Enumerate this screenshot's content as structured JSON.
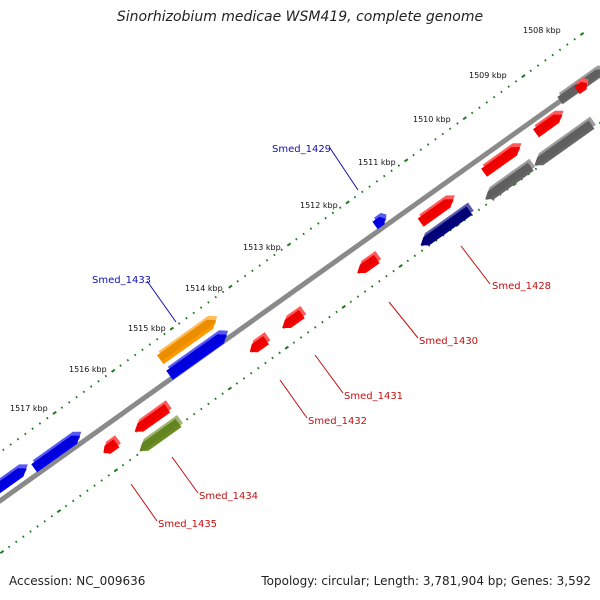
{
  "title": "Sinorhizobium medicae WSM419, complete genome",
  "accession_text": "Accession: NC_009636",
  "summary_text": "Topology: circular; Length: 3,781,904 bp; Genes: 3,592",
  "colors": {
    "backbone": "#8a8a8a",
    "ticks": "#1e7a1e",
    "forward_label": "#1010b0",
    "reverse_label": "#c01010",
    "red_gene": "#ff0000",
    "blue_gene": "#0000ee",
    "orange_gene": "#ff9900",
    "olive_gene": "#6b8e23",
    "gray_gene": "#666666",
    "navy_gene": "#000080"
  },
  "kbp_labels": [
    "1508 kbp",
    "1509 kbp",
    "1510 kbp",
    "1511 kbp",
    "1512 kbp",
    "1513 kbp",
    "1514 kbp",
    "1515 kbp",
    "1516 kbp",
    "1517 kbp"
  ],
  "gene_labels": [
    {
      "name": "Smed_1429",
      "strand": "forward"
    },
    {
      "name": "Smed_1433",
      "strand": "forward"
    },
    {
      "name": "Smed_1428",
      "strand": "reverse"
    },
    {
      "name": "Smed_1430",
      "strand": "reverse"
    },
    {
      "name": "Smed_1431",
      "strand": "reverse"
    },
    {
      "name": "Smed_1432",
      "strand": "reverse"
    },
    {
      "name": "Smed_1434",
      "strand": "reverse"
    },
    {
      "name": "Smed_1435",
      "strand": "reverse"
    }
  ]
}
